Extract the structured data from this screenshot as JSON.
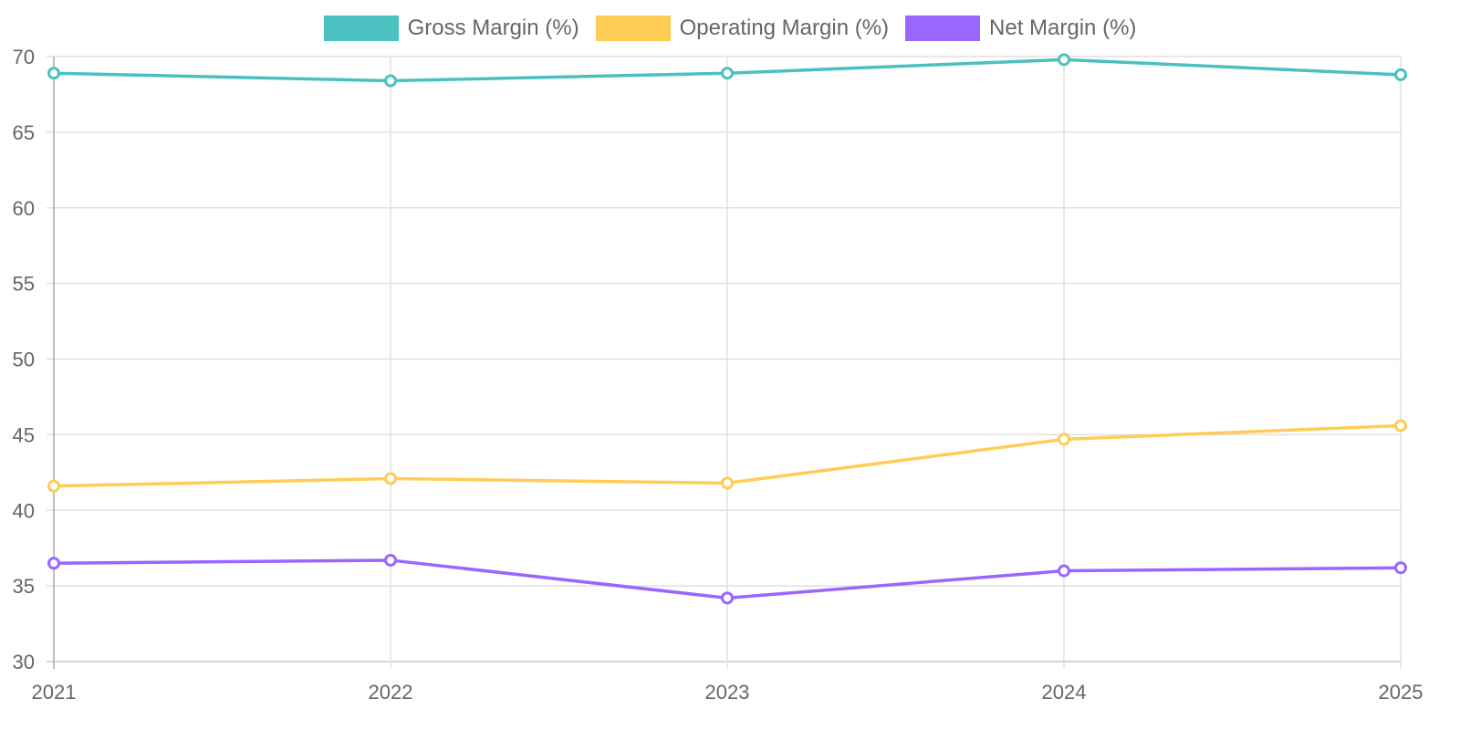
{
  "chart_data": {
    "type": "line",
    "title": "",
    "xlabel": "",
    "ylabel": "",
    "categories": [
      "2021",
      "2022",
      "2023",
      "2024",
      "2025"
    ],
    "ylim": [
      30,
      70
    ],
    "yticks": [
      "30",
      "35",
      "40",
      "45",
      "50",
      "55",
      "60",
      "65",
      "70"
    ],
    "grid": true,
    "legend_position": "top",
    "series": [
      {
        "name": "Gross Margin (%)",
        "color": "#4BC0C0",
        "values": [
          68.9,
          68.4,
          68.9,
          69.8,
          68.8
        ]
      },
      {
        "name": "Operating Margin (%)",
        "color": "#FFCD56",
        "values": [
          41.6,
          42.1,
          41.8,
          44.7,
          45.6
        ]
      },
      {
        "name": "Net Margin (%)",
        "color": "#9966FF",
        "values": [
          36.5,
          36.7,
          34.2,
          36.0,
          36.2
        ]
      }
    ]
  }
}
